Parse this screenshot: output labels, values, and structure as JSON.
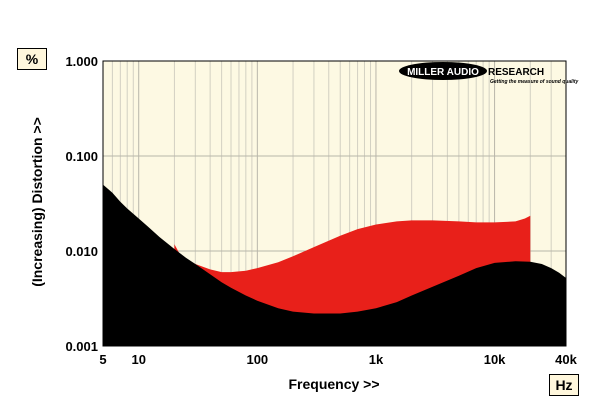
{
  "chart_data": {
    "type": "area",
    "xlabel": "Frequency >>",
    "ylabel": "(Increasing) Distortion >>",
    "y_unit": "%",
    "x_unit": "Hz",
    "x_scale": "log",
    "y_scale": "log",
    "xlim": [
      5,
      40000
    ],
    "ylim": [
      0.001,
      1.0
    ],
    "x_ticks": [
      {
        "value": 5,
        "label": "5"
      },
      {
        "value": 10,
        "label": "10"
      },
      {
        "value": 100,
        "label": "100"
      },
      {
        "value": 1000,
        "label": "1k"
      },
      {
        "value": 10000,
        "label": "10k"
      },
      {
        "value": 40000,
        "label": "40k"
      }
    ],
    "y_ticks": [
      {
        "value": 0.001,
        "label": "0.001"
      },
      {
        "value": 0.01,
        "label": "0.010"
      },
      {
        "value": 0.1,
        "label": "0.100"
      },
      {
        "value": 1.0,
        "label": "1.000"
      }
    ],
    "grid": "log",
    "background_color": "#fdf9e3",
    "series": [
      {
        "color": "#e8201a",
        "points": [
          [
            20,
            0.0118
          ],
          [
            22,
            0.0095
          ],
          [
            25,
            0.0083
          ],
          [
            30,
            0.0073
          ],
          [
            40,
            0.0064
          ],
          [
            50,
            0.006
          ],
          [
            60,
            0.006
          ],
          [
            80,
            0.0062
          ],
          [
            100,
            0.0066
          ],
          [
            150,
            0.0076
          ],
          [
            200,
            0.0088
          ],
          [
            300,
            0.011
          ],
          [
            500,
            0.0145
          ],
          [
            700,
            0.017
          ],
          [
            1000,
            0.019
          ],
          [
            1500,
            0.0205
          ],
          [
            2000,
            0.021
          ],
          [
            3000,
            0.021
          ],
          [
            5000,
            0.0205
          ],
          [
            7000,
            0.02
          ],
          [
            10000,
            0.02
          ],
          [
            15000,
            0.0205
          ],
          [
            18000,
            0.022
          ],
          [
            20000,
            0.0235
          ]
        ]
      },
      {
        "color": "#000000",
        "points": [
          [
            5,
            0.05
          ],
          [
            6,
            0.041
          ],
          [
            7,
            0.033
          ],
          [
            8,
            0.028
          ],
          [
            10,
            0.022
          ],
          [
            12,
            0.018
          ],
          [
            15,
            0.014
          ],
          [
            20,
            0.0105
          ],
          [
            25,
            0.0085
          ],
          [
            30,
            0.0073
          ],
          [
            40,
            0.0057
          ],
          [
            50,
            0.0047
          ],
          [
            60,
            0.0041
          ],
          [
            80,
            0.0034
          ],
          [
            100,
            0.003
          ],
          [
            150,
            0.0025
          ],
          [
            200,
            0.0023
          ],
          [
            300,
            0.0022
          ],
          [
            400,
            0.0022
          ],
          [
            500,
            0.0022
          ],
          [
            700,
            0.0023
          ],
          [
            1000,
            0.0025
          ],
          [
            1500,
            0.0029
          ],
          [
            2000,
            0.0034
          ],
          [
            3000,
            0.0042
          ],
          [
            5000,
            0.0055
          ],
          [
            7000,
            0.0066
          ],
          [
            10000,
            0.0075
          ],
          [
            15000,
            0.0078
          ],
          [
            20000,
            0.0077
          ],
          [
            25000,
            0.0073
          ],
          [
            30000,
            0.0066
          ],
          [
            35000,
            0.0059
          ],
          [
            40000,
            0.0052
          ]
        ]
      }
    ]
  },
  "brand": {
    "name_left": "MILLER AUDIO",
    "name_right": "RESEARCH",
    "tagline": "Getting the measure of sound quality"
  }
}
